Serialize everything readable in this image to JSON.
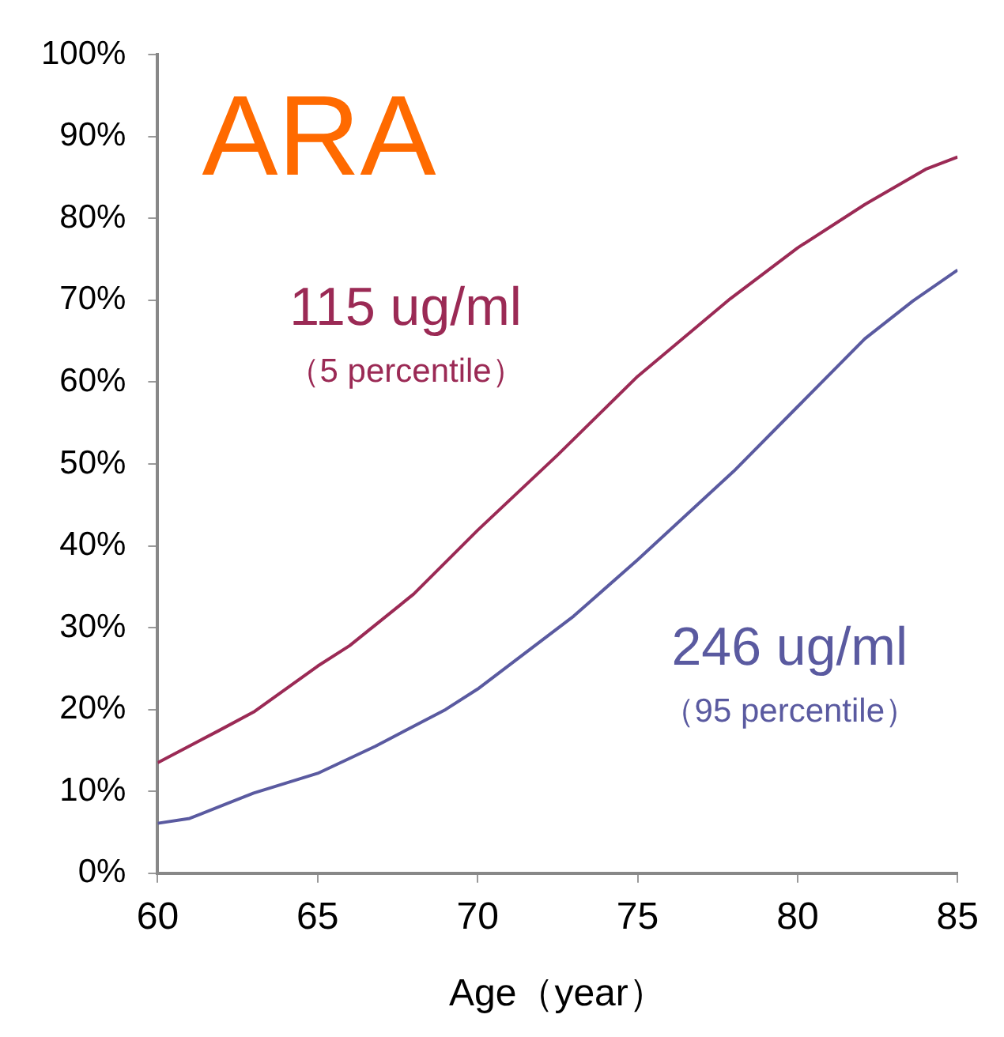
{
  "chart_data": {
    "type": "line",
    "title": "ARA",
    "xlabel": "Age（year）",
    "series": [
      {
        "name": "115 ug/ml",
        "color": "#9b2a55",
        "x": [
          60,
          61.9,
          63,
          65,
          66,
          68,
          70,
          72.5,
          75,
          77.9,
          80,
          82.1,
          84,
          85
        ],
        "values": [
          13.5,
          17.4,
          19.7,
          25.3,
          27.8,
          34.1,
          41.9,
          51.1,
          60.7,
          70.2,
          76.4,
          81.7,
          86,
          87.5
        ]
      },
      {
        "name": "246 ug/ml",
        "color": "#5a5aa0",
        "x": [
          60,
          61,
          63,
          65,
          66.8,
          69,
          70,
          73,
          75,
          78,
          80,
          82.1,
          83.6,
          85
        ],
        "values": [
          6.1,
          6.7,
          9.8,
          12.2,
          15.5,
          20,
          22.5,
          31.4,
          38.3,
          49.1,
          57,
          65.3,
          69.9,
          73.7
        ]
      }
    ],
    "annotations": [
      "（5 percentile）",
      "（95 percentile）"
    ],
    "xlim": [
      60,
      85
    ],
    "xticks": [
      60,
      65,
      70,
      75,
      80,
      85
    ],
    "ylim": [
      0,
      100
    ],
    "yticks": [
      {
        "value": 0,
        "label": "0%"
      },
      {
        "value": 10,
        "label": "10%"
      },
      {
        "value": 20,
        "label": "20%"
      },
      {
        "value": 30,
        "label": "30%"
      },
      {
        "value": 40,
        "label": "40%"
      },
      {
        "value": 50,
        "label": "50%"
      },
      {
        "value": 60,
        "label": "60%"
      },
      {
        "value": 70,
        "label": "70%"
      },
      {
        "value": 80,
        "label": "80%"
      },
      {
        "value": 90,
        "label": "90%"
      },
      {
        "value": 100,
        "label": "100%"
      }
    ],
    "grid": false,
    "legend": false,
    "marker": "none",
    "line_style": "solid"
  }
}
